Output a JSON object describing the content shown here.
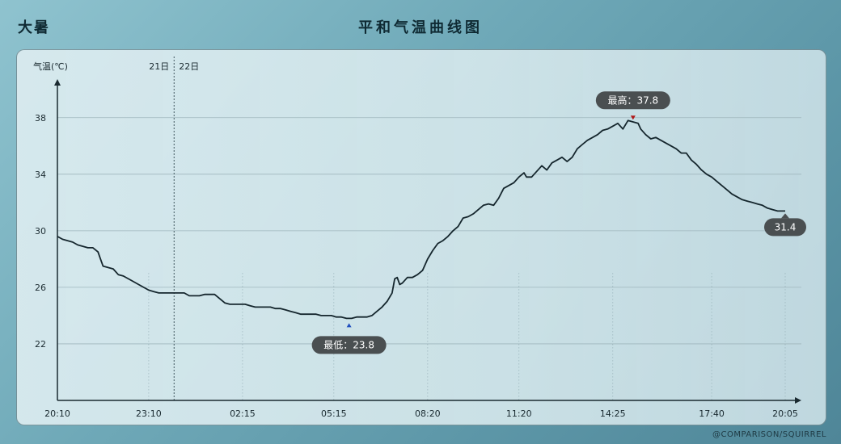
{
  "corner_title": "大暑",
  "credit": "@COMPARISON/SQUIRREL",
  "colors": {
    "line": "#15262d",
    "grid": "#9fb6bd",
    "axis": "#1a2a30",
    "callout": "#4a4f51",
    "max_marker": "#b01818",
    "min_marker": "#1f4fbf"
  },
  "chart_data": {
    "type": "line",
    "title": "平和气温曲线图",
    "ylabel": "气温(℃)",
    "ylim": [
      18,
      40.5
    ],
    "yticks": [
      22,
      26,
      30,
      34,
      38
    ],
    "xticks": [
      {
        "t": 0,
        "label": "20:10"
      },
      {
        "t": 180,
        "label": "23:10"
      },
      {
        "t": 365,
        "label": "02:15"
      },
      {
        "t": 545,
        "label": "05:15"
      },
      {
        "t": 730,
        "label": "08:20"
      },
      {
        "t": 910,
        "label": "11:20"
      },
      {
        "t": 1095,
        "label": "14:25"
      },
      {
        "t": 1290,
        "label": "17:40"
      },
      {
        "t": 1435,
        "label": "20:05"
      }
    ],
    "day_boundary": {
      "t": 230,
      "left_label": "21日",
      "right_label": "22日"
    },
    "xrange": [
      0,
      1435
    ],
    "max": {
      "t": 1135,
      "value": 37.8,
      "label": "最高：37.8"
    },
    "min": {
      "t": 575,
      "value": 23.8,
      "label": "最低：23.8"
    },
    "last": {
      "t": 1435,
      "value": 31.4,
      "label": "31.4"
    },
    "series": [
      {
        "points": [
          [
            0,
            29.6
          ],
          [
            10,
            29.4
          ],
          [
            20,
            29.3
          ],
          [
            30,
            29.2
          ],
          [
            40,
            29.0
          ],
          [
            50,
            28.9
          ],
          [
            60,
            28.8
          ],
          [
            70,
            28.8
          ],
          [
            80,
            28.5
          ],
          [
            85,
            28.0
          ],
          [
            90,
            27.5
          ],
          [
            100,
            27.4
          ],
          [
            110,
            27.3
          ],
          [
            120,
            26.9
          ],
          [
            130,
            26.8
          ],
          [
            140,
            26.6
          ],
          [
            150,
            26.4
          ],
          [
            160,
            26.2
          ],
          [
            170,
            26.0
          ],
          [
            180,
            25.8
          ],
          [
            190,
            25.7
          ],
          [
            200,
            25.6
          ],
          [
            210,
            25.6
          ],
          [
            220,
            25.6
          ],
          [
            230,
            25.6
          ],
          [
            240,
            25.6
          ],
          [
            250,
            25.6
          ],
          [
            260,
            25.4
          ],
          [
            270,
            25.4
          ],
          [
            280,
            25.4
          ],
          [
            290,
            25.5
          ],
          [
            300,
            25.5
          ],
          [
            310,
            25.5
          ],
          [
            320,
            25.2
          ],
          [
            330,
            24.9
          ],
          [
            340,
            24.8
          ],
          [
            350,
            24.8
          ],
          [
            360,
            24.8
          ],
          [
            370,
            24.8
          ],
          [
            380,
            24.7
          ],
          [
            390,
            24.6
          ],
          [
            400,
            24.6
          ],
          [
            410,
            24.6
          ],
          [
            420,
            24.6
          ],
          [
            430,
            24.5
          ],
          [
            440,
            24.5
          ],
          [
            450,
            24.4
          ],
          [
            460,
            24.3
          ],
          [
            470,
            24.2
          ],
          [
            480,
            24.1
          ],
          [
            490,
            24.1
          ],
          [
            500,
            24.1
          ],
          [
            510,
            24.1
          ],
          [
            520,
            24.0
          ],
          [
            530,
            24.0
          ],
          [
            540,
            24.0
          ],
          [
            550,
            23.9
          ],
          [
            560,
            23.9
          ],
          [
            570,
            23.8
          ],
          [
            580,
            23.8
          ],
          [
            590,
            23.9
          ],
          [
            600,
            23.9
          ],
          [
            610,
            23.9
          ],
          [
            620,
            24.0
          ],
          [
            630,
            24.3
          ],
          [
            640,
            24.6
          ],
          [
            650,
            25.0
          ],
          [
            660,
            25.6
          ],
          [
            665,
            26.6
          ],
          [
            670,
            26.7
          ],
          [
            675,
            26.2
          ],
          [
            680,
            26.3
          ],
          [
            690,
            26.7
          ],
          [
            700,
            26.7
          ],
          [
            710,
            26.9
          ],
          [
            720,
            27.2
          ],
          [
            730,
            28.0
          ],
          [
            740,
            28.6
          ],
          [
            750,
            29.1
          ],
          [
            760,
            29.3
          ],
          [
            770,
            29.6
          ],
          [
            780,
            30.0
          ],
          [
            790,
            30.3
          ],
          [
            800,
            30.9
          ],
          [
            810,
            31.0
          ],
          [
            820,
            31.2
          ],
          [
            830,
            31.5
          ],
          [
            840,
            31.8
          ],
          [
            850,
            31.9
          ],
          [
            860,
            31.8
          ],
          [
            870,
            32.3
          ],
          [
            880,
            33.0
          ],
          [
            890,
            33.2
          ],
          [
            900,
            33.4
          ],
          [
            910,
            33.8
          ],
          [
            920,
            34.1
          ],
          [
            925,
            33.8
          ],
          [
            935,
            33.8
          ],
          [
            945,
            34.2
          ],
          [
            955,
            34.6
          ],
          [
            965,
            34.3
          ],
          [
            975,
            34.8
          ],
          [
            985,
            35.0
          ],
          [
            995,
            35.2
          ],
          [
            1005,
            34.9
          ],
          [
            1015,
            35.2
          ],
          [
            1025,
            35.8
          ],
          [
            1035,
            36.1
          ],
          [
            1045,
            36.4
          ],
          [
            1055,
            36.6
          ],
          [
            1065,
            36.8
          ],
          [
            1075,
            37.1
          ],
          [
            1085,
            37.2
          ],
          [
            1095,
            37.4
          ],
          [
            1105,
            37.6
          ],
          [
            1115,
            37.2
          ],
          [
            1125,
            37.8
          ],
          [
            1135,
            37.7
          ],
          [
            1145,
            37.6
          ],
          [
            1150,
            37.2
          ],
          [
            1160,
            36.8
          ],
          [
            1170,
            36.5
          ],
          [
            1180,
            36.6
          ],
          [
            1190,
            36.4
          ],
          [
            1200,
            36.2
          ],
          [
            1210,
            36.0
          ],
          [
            1220,
            35.8
          ],
          [
            1230,
            35.5
          ],
          [
            1240,
            35.5
          ],
          [
            1250,
            35.0
          ],
          [
            1260,
            34.7
          ],
          [
            1270,
            34.3
          ],
          [
            1280,
            34.0
          ],
          [
            1290,
            33.8
          ],
          [
            1300,
            33.5
          ],
          [
            1310,
            33.2
          ],
          [
            1320,
            32.9
          ],
          [
            1330,
            32.6
          ],
          [
            1340,
            32.4
          ],
          [
            1350,
            32.2
          ],
          [
            1360,
            32.1
          ],
          [
            1370,
            32.0
          ],
          [
            1380,
            31.9
          ],
          [
            1390,
            31.8
          ],
          [
            1400,
            31.6
          ],
          [
            1410,
            31.5
          ],
          [
            1420,
            31.4
          ],
          [
            1435,
            31.4
          ]
        ]
      }
    ]
  }
}
